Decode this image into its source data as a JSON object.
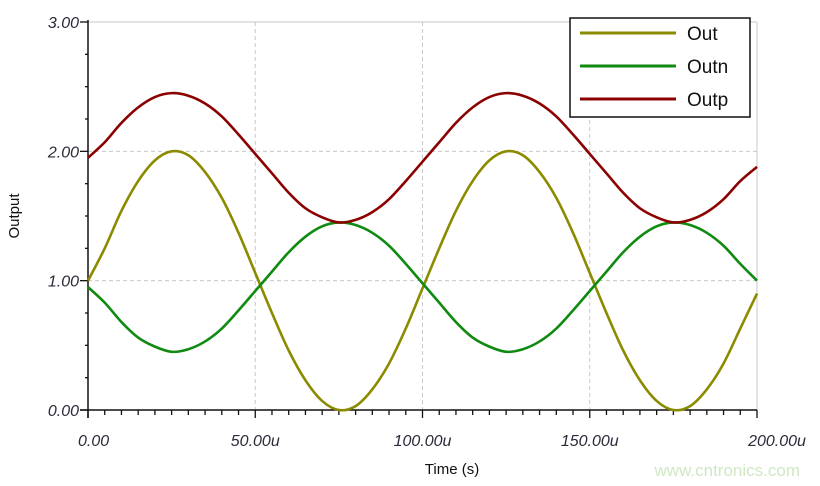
{
  "chart_data": {
    "type": "line",
    "title": "",
    "xlabel": "Time (s)",
    "ylabel": "Output",
    "xlim": [
      0,
      200
    ],
    "ylim": [
      0,
      3
    ],
    "x_unit_suffix": "u",
    "x_ticks": [
      "0.00",
      "50.00u",
      "100.00u",
      "150.00u",
      "200.00u"
    ],
    "x_tick_values": [
      0,
      50,
      100,
      150,
      200
    ],
    "y_ticks": [
      "0.00",
      "1.00",
      "2.00",
      "3.00"
    ],
    "y_tick_values": [
      0,
      1,
      2,
      3
    ],
    "grid": true,
    "legend_position": "top-right",
    "x": [
      0,
      5,
      10,
      15,
      20,
      25,
      30,
      35,
      40,
      45,
      50,
      55,
      60,
      65,
      70,
      75,
      80,
      85,
      90,
      95,
      100,
      105,
      110,
      115,
      120,
      125,
      130,
      135,
      140,
      145,
      150,
      155,
      160,
      165,
      170,
      175,
      180,
      185,
      190,
      195,
      200
    ],
    "series": [
      {
        "name": "Out",
        "color": "#8b8b00",
        "values": [
          1.0,
          1.25,
          1.54,
          1.77,
          1.93,
          2.0,
          1.97,
          1.84,
          1.64,
          1.37,
          1.06,
          0.75,
          0.46,
          0.23,
          0.07,
          0.0,
          0.03,
          0.16,
          0.36,
          0.63,
          0.94,
          1.25,
          1.54,
          1.77,
          1.93,
          2.0,
          1.97,
          1.84,
          1.64,
          1.37,
          1.06,
          0.75,
          0.46,
          0.23,
          0.07,
          0.0,
          0.03,
          0.16,
          0.36,
          0.63,
          0.9
        ]
      },
      {
        "name": "Outn",
        "color": "#108a10",
        "values": [
          0.95,
          0.83,
          0.68,
          0.56,
          0.49,
          0.45,
          0.47,
          0.53,
          0.63,
          0.77,
          0.92,
          1.07,
          1.22,
          1.34,
          1.42,
          1.45,
          1.43,
          1.37,
          1.27,
          1.13,
          0.98,
          0.83,
          0.68,
          0.56,
          0.49,
          0.45,
          0.47,
          0.53,
          0.63,
          0.77,
          0.92,
          1.07,
          1.22,
          1.34,
          1.42,
          1.45,
          1.43,
          1.37,
          1.27,
          1.13,
          1.0
        ]
      },
      {
        "name": "Outp",
        "color": "#8b0000",
        "values": [
          1.95,
          2.07,
          2.22,
          2.34,
          2.42,
          2.45,
          2.43,
          2.37,
          2.27,
          2.13,
          1.98,
          1.83,
          1.68,
          1.56,
          1.49,
          1.45,
          1.47,
          1.53,
          1.63,
          1.77,
          1.92,
          2.07,
          2.22,
          2.34,
          2.42,
          2.45,
          2.43,
          2.37,
          2.27,
          2.13,
          1.98,
          1.83,
          1.68,
          1.56,
          1.49,
          1.45,
          1.47,
          1.53,
          1.63,
          1.77,
          1.88
        ]
      }
    ]
  },
  "watermark": "www.cntronics.com"
}
